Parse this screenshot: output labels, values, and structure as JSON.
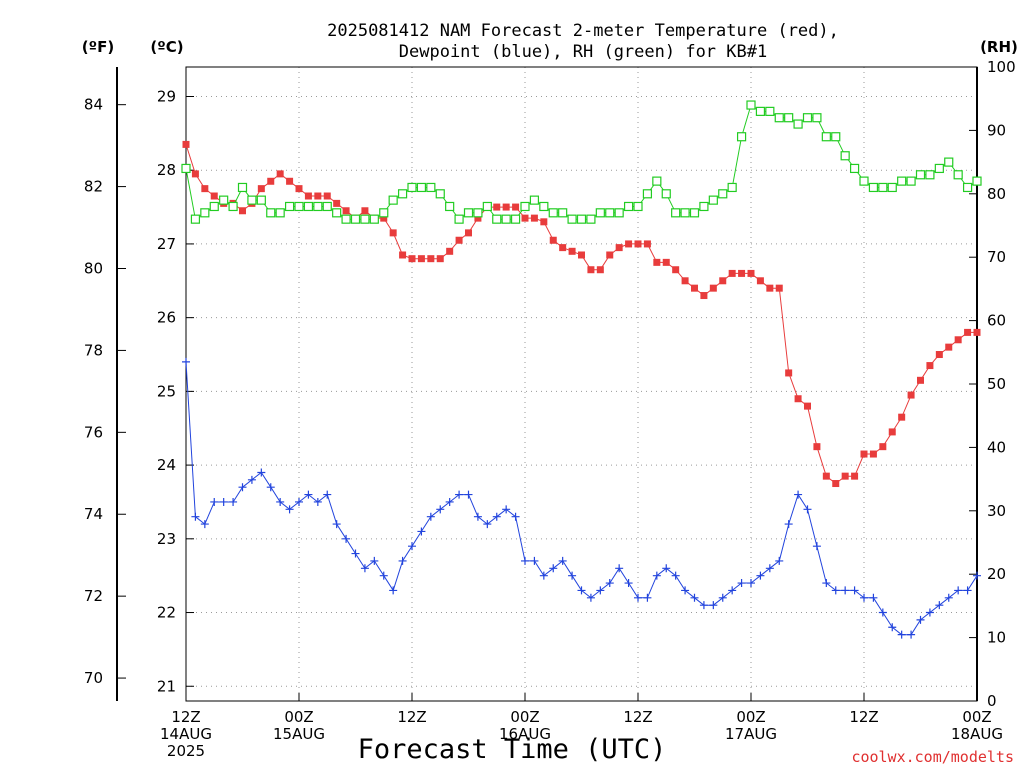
{
  "chart_data": {
    "type": "line",
    "title_line1": "2025081412 NAM Forecast 2-meter Temperature (red),",
    "title_line2": "Dewpoint (blue), RH (green) for KB#1",
    "unit_f": "(ºF)",
    "unit_c": "(ºC)",
    "unit_rh": "(RH)",
    "xlabel": "Forecast Time (UTC)",
    "credit": "coolwx.com/modelts",
    "x_range_hours": [
      0,
      84
    ],
    "x_ticks": [
      {
        "hour": 0,
        "lines": [
          "12Z",
          "14AUG",
          "2025"
        ]
      },
      {
        "hour": 12,
        "lines": [
          "00Z",
          "15AUG"
        ]
      },
      {
        "hour": 24,
        "lines": [
          "12Z"
        ]
      },
      {
        "hour": 36,
        "lines": [
          "00Z",
          "16AUG"
        ]
      },
      {
        "hour": 48,
        "lines": [
          "12Z"
        ]
      },
      {
        "hour": 60,
        "lines": [
          "00Z",
          "17AUG"
        ]
      },
      {
        "hour": 72,
        "lines": [
          "12Z"
        ]
      },
      {
        "hour": 84,
        "lines": [
          "00Z",
          "18AUG"
        ]
      }
    ],
    "y_celsius": {
      "range": [
        20.8,
        29.4
      ],
      "ticks": [
        21,
        22,
        23,
        24,
        25,
        26,
        27,
        28,
        29
      ]
    },
    "y_fahrenheit": {
      "ticks": [
        70,
        72,
        74,
        76,
        78,
        80,
        82,
        84
      ]
    },
    "y_rh": {
      "range": [
        0,
        100
      ],
      "ticks": [
        0,
        10,
        20,
        30,
        40,
        50,
        60,
        70,
        80,
        90,
        100
      ]
    },
    "grid": true,
    "colors": {
      "temperature": "#e83c3c",
      "dewpoint": "#2244dd",
      "rh": "#22cc22",
      "credit": "#e03030"
    },
    "series": [
      {
        "name": "Temperature",
        "unit": "C",
        "marker": "filled-square",
        "x": [
          0,
          1,
          2,
          3,
          4,
          5,
          6,
          7,
          8,
          9,
          10,
          11,
          12,
          13,
          14,
          15,
          16,
          17,
          18,
          19,
          20,
          21,
          22,
          23,
          24,
          25,
          26,
          27,
          28,
          29,
          30,
          31,
          32,
          33,
          34,
          35,
          36,
          37,
          38,
          39,
          40,
          41,
          42,
          43,
          44,
          45,
          46,
          47,
          48,
          49,
          50,
          51,
          52,
          53,
          54,
          55,
          56,
          57,
          58,
          59,
          60,
          61,
          62,
          63,
          64,
          65,
          66,
          67,
          68,
          69,
          70,
          71,
          72,
          73,
          74,
          75,
          76,
          77,
          78,
          79,
          80,
          81,
          82,
          83,
          84
        ],
        "y": [
          28.35,
          27.95,
          27.75,
          27.65,
          27.55,
          27.55,
          27.45,
          27.55,
          27.75,
          27.85,
          27.95,
          27.85,
          27.75,
          27.65,
          27.65,
          27.65,
          27.55,
          27.45,
          27.35,
          27.45,
          27.35,
          27.35,
          27.15,
          26.85,
          26.8,
          26.8,
          26.8,
          26.8,
          26.9,
          27.05,
          27.15,
          27.35,
          27.5,
          27.5,
          27.5,
          27.5,
          27.35,
          27.35,
          27.3,
          27.05,
          26.95,
          26.9,
          26.85,
          26.65,
          26.65,
          26.85,
          26.95,
          27.0,
          27.0,
          27.0,
          26.75,
          26.75,
          26.65,
          26.5,
          26.4,
          26.3,
          26.4,
          26.5,
          26.6,
          26.6,
          26.6,
          26.5,
          26.4,
          26.4,
          25.25,
          24.9,
          24.8,
          24.25,
          23.85,
          23.75,
          23.85,
          23.85,
          24.15,
          24.15,
          24.25,
          24.45,
          24.65,
          24.95,
          25.15,
          25.35,
          25.5,
          25.6,
          25.7,
          25.8,
          25.8
        ]
      },
      {
        "name": "Dewpoint",
        "unit": "C",
        "marker": "plus",
        "x": [
          0,
          1,
          2,
          3,
          4,
          5,
          6,
          7,
          8,
          9,
          10,
          11,
          12,
          13,
          14,
          15,
          16,
          17,
          18,
          19,
          20,
          21,
          22,
          23,
          24,
          25,
          26,
          27,
          28,
          29,
          30,
          31,
          32,
          33,
          34,
          35,
          36,
          37,
          38,
          39,
          40,
          41,
          42,
          43,
          44,
          45,
          46,
          47,
          48,
          49,
          50,
          51,
          52,
          53,
          54,
          55,
          56,
          57,
          58,
          59,
          60,
          61,
          62,
          63,
          64,
          65,
          66,
          67,
          68,
          69,
          70,
          71,
          72,
          73,
          74,
          75,
          76,
          77,
          78,
          79,
          80,
          81,
          82,
          83,
          84
        ],
        "y": [
          25.4,
          23.3,
          23.2,
          23.5,
          23.5,
          23.5,
          23.7,
          23.8,
          23.9,
          23.7,
          23.5,
          23.4,
          23.5,
          23.6,
          23.5,
          23.6,
          23.2,
          23.0,
          22.8,
          22.6,
          22.7,
          22.5,
          22.3,
          22.7,
          22.9,
          23.1,
          23.3,
          23.4,
          23.5,
          23.6,
          23.6,
          23.3,
          23.2,
          23.3,
          23.4,
          23.3,
          22.7,
          22.7,
          22.5,
          22.6,
          22.7,
          22.5,
          22.3,
          22.2,
          22.3,
          22.4,
          22.6,
          22.4,
          22.2,
          22.2,
          22.5,
          22.6,
          22.5,
          22.3,
          22.2,
          22.1,
          22.1,
          22.2,
          22.3,
          22.4,
          22.4,
          22.5,
          22.6,
          22.7,
          23.2,
          23.6,
          23.4,
          22.9,
          22.4,
          22.3,
          22.3,
          22.3,
          22.2,
          22.2,
          22.0,
          21.8,
          21.7,
          21.7,
          21.9,
          22.0,
          22.1,
          22.2,
          22.3,
          22.3,
          22.5
        ]
      },
      {
        "name": "RH",
        "unit": "%",
        "marker": "open-square",
        "x": [
          0,
          1,
          2,
          3,
          4,
          5,
          6,
          7,
          8,
          9,
          10,
          11,
          12,
          13,
          14,
          15,
          16,
          17,
          18,
          19,
          20,
          21,
          22,
          23,
          24,
          25,
          26,
          27,
          28,
          29,
          30,
          31,
          32,
          33,
          34,
          35,
          36,
          37,
          38,
          39,
          40,
          41,
          42,
          43,
          44,
          45,
          46,
          47,
          48,
          49,
          50,
          51,
          52,
          53,
          54,
          55,
          56,
          57,
          58,
          59,
          60,
          61,
          62,
          63,
          64,
          65,
          66,
          67,
          68,
          69,
          70,
          71,
          72,
          73,
          74,
          75,
          76,
          77,
          78,
          79,
          80,
          81,
          82,
          83,
          84
        ],
        "y": [
          84,
          76,
          77,
          78,
          79,
          78,
          81,
          79,
          79,
          77,
          77,
          78,
          78,
          78,
          78,
          78,
          77,
          76,
          76,
          76,
          76,
          77,
          79,
          80,
          81,
          81,
          81,
          80,
          78,
          76,
          77,
          77,
          78,
          76,
          76,
          76,
          78,
          79,
          78,
          77,
          77,
          76,
          76,
          76,
          77,
          77,
          77,
          78,
          78,
          80,
          82,
          80,
          77,
          77,
          77,
          78,
          79,
          80,
          81,
          89,
          94,
          93,
          93,
          92,
          92,
          91,
          92,
          92,
          89,
          89,
          86,
          84,
          82,
          81,
          81,
          81,
          82,
          82,
          83,
          83,
          84,
          85,
          83,
          81,
          82
        ]
      }
    ]
  }
}
